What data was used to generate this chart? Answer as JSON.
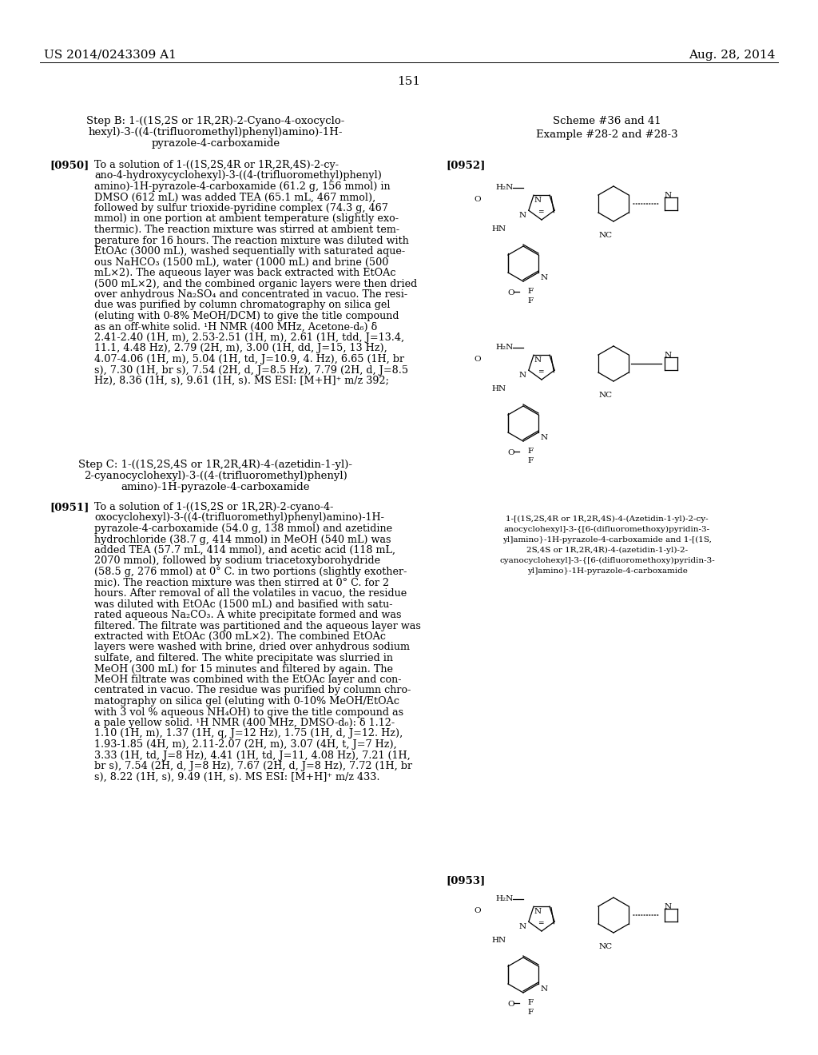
{
  "bg_color": "#ffffff",
  "header_left": "US 2014/0243309 A1",
  "header_right": "Aug. 28, 2014",
  "page_number": "151",
  "step_b_title": "Step B: 1-((1S,2S or 1R,2R)-2-Cyano-4-oxocyclo-\nhexyl)-3-((4-(trifluoromethyl)phenyl)amino)-1H-\npyrazole-4-carboxamide",
  "scheme_label": "Scheme #36 and 41",
  "example_label": "Example #28-2 and #28-3",
  "para_0950_label": "[0950]",
  "para_0950_text": "To a solution of 1-((1S,2S,4R or 1R,2R,4S)-2-cy-\nano-4-hydroxycyclohexyl)-3-((4-(trifluoromethyl)phenyl)\namino)-1H-pyrazole-4-carboxamide (61.2 g, 156 mmol) in\nDMSO (612 mL) was added TEA (65.1 mL, 467 mmol),\nfollowed by sulfur trioxide-pyridine complex (74.3 g, 467\nmmol) in one portion at ambient temperature (slightly exo-\nthermic). The reaction mixture was stirred at ambient tem-\nperature for 16 hours. The reaction mixture was diluted with\nEtOAc (3000 mL), washed sequentially with saturated aque-\nous NaHCO₃ (1500 mL), water (1000 mL) and brine (500\nmL×2). The aqueous layer was back extracted with EtOAc\n(500 mL×2), and the combined organic layers were then dried\nover anhydrous Na₂SO₄ and concentrated in vacuo. The resi-\ndue was purified by column chromatography on silica gel\n(eluting with 0-8% MeOH/DCM) to give the title compound\nas an off-white solid. ¹H NMR (400 MHz, Acetone-d₆) δ\n2.41-2.40 (1H, m), 2.53-2.51 (1H, m), 2.61 (1H, tdd, J=13.4,\n11.1, 4.48 Hz), 2.79 (2H, m), 3.00 (1H, dd, J=15, 13 Hz),\n4.07-4.06 (1H, m), 5.04 (1H, td, J=10.9, 4. Hz), 6.65 (1H, br\ns), 7.30 (1H, br s), 7.54 (2H, d, J=8.5 Hz), 7.79 (2H, d, J=8.5\nHz), 8.36 (1H, s), 9.61 (1H, s). MS ESI: [M+H]⁺ m/z 392;",
  "step_c_title": "Step C: 1-((1S,2S,4S or 1R,2R,4R)-4-(azetidin-1-yl)-\n2-cyanocyclohexyl)-3-((4-(trifluoromethyl)phenyl)\namino)-1H-pyrazole-4-carboxamide",
  "para_0951_label": "[0951]",
  "para_0951_text": "To a solution of 1-((1S,2S or 1R,2R)-2-cyano-4-\noxocyclohexyl)-3-((4-(trifluoromethyl)phenyl)amino)-1H-\npyrazole-4-carboxamide (54.0 g, 138 mmol) and azetidine\nhydrochloride (38.7 g, 414 mmol) in MeOH (540 mL) was\nadded TEA (57.7 mL, 414 mmol), and acetic acid (118 mL,\n2070 mmol), followed by sodium triacetoxyborohydride\n(58.5 g, 276 mmol) at 0° C. in two portions (slightly exother-\nmic). The reaction mixture was then stirred at 0° C. for 2\nhours. After removal of all the volatiles in vacuo, the residue\nwas diluted with EtOAc (1500 mL) and basified with satu-\nrated aqueous Na₂CO₃. A white precipitate formed and was\nfiltered. The filtrate was partitioned and the aqueous layer was\nextracted with EtOAc (300 mL×2). The combined EtOAc\nlayers were washed with brine, dried over anhydrous sodium\nsulfate, and filtered. The white precipitate was slurried in\nMeOH (300 mL) for 15 minutes and filtered by again. The\nMeOH filtrate was combined with the EtOAc layer and con-\ncentrated in vacuo. The residue was purified by column chro-\nmatography on silica gel (eluting with 0-10% MeOH/EtOAc\nwith 3 vol % aqueous NH₄OH) to give the title compound as\na pale yellow solid. ¹H NMR (400 MHz, DMSO-d₆): δ 1.12-\n1.10 (1H, m), 1.37 (1H, q, J=12 Hz), 1.75 (1H, d, J=12. Hz),\n1.93-1.85 (4H, m), 2.11-2.07 (2H, m), 3.07 (4H, t, J=7 Hz),\n3.33 (1H, td, J=8 Hz), 4.41 (1H, td, J=11, 4.08 Hz), 7.21 (1H,\nbr s), 7.54 (2H, d, J=8 Hz), 7.67 (2H, d, J=8 Hz), 7.72 (1H, br\ns), 8.22 (1H, s), 9.49 (1H, s). MS ESI: [M+H]⁺ m/z 433.",
  "para_0952_label": "[0952]",
  "caption_952": "1-[(1S,2S,4R or 1R,2R,4S)-4-(Azetidin-1-yl)-2-cy-\nanocyclohexyl]-3-{[6-(difluoromethoxy)pyridin-3-\nyl]amino}-1H-pyrazole-4-carboxamide and 1-[(1S,\n2S,4S or 1R,2R,4R)-4-(azetidin-1-yl)-2-\ncyanocyclohexyl]-3-{[6-(difluoromethoxy)pyridin-3-\nyl]amino}-1H-pyrazole-4-carboxamide",
  "para_0953_label": "[0953]"
}
